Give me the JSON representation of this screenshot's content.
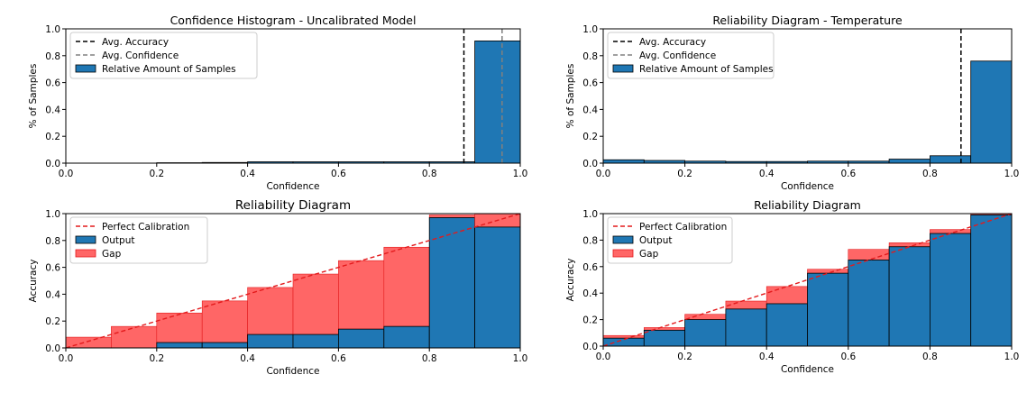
{
  "colors": {
    "output": "#1f77b4",
    "gap": "#ff6666",
    "gap_overconfident": "#a52a3c",
    "perfect": "#e31a1c",
    "avg_accuracy": "#000000",
    "avg_confidence": "#808080",
    "edge": "#000000"
  },
  "chart_data": [
    {
      "type": "bar",
      "kind": "histogram",
      "title": "Confidence Histogram - Uncalibrated Model",
      "xlabel": "Confidence",
      "ylabel": "% of Samples",
      "xlim": [
        0,
        1
      ],
      "ylim": [
        0,
        1
      ],
      "xticks": [
        "0.0",
        "0.2",
        "0.4",
        "0.6",
        "0.8",
        "1.0"
      ],
      "yticks": [
        "0.0",
        "0.2",
        "0.4",
        "0.6",
        "0.8",
        "1.0"
      ],
      "bin_edges": [
        0,
        0.1,
        0.2,
        0.3,
        0.4,
        0.5,
        0.6,
        0.7,
        0.8,
        0.9,
        1.0
      ],
      "values": [
        0,
        0,
        0.003,
        0.005,
        0.01,
        0.01,
        0.01,
        0.01,
        0.01,
        0.91
      ],
      "avg_accuracy": 0.876,
      "avg_confidence": 0.96,
      "legend": {
        "placement": "top-left",
        "entries": [
          "Avg. Accuracy",
          "Avg. Confidence",
          "Relative Amount of Samples"
        ]
      }
    },
    {
      "type": "bar",
      "kind": "histogram",
      "title": "Reliability Diagram - Temperature",
      "xlabel": "Confidence",
      "ylabel": "% of Samples",
      "xlim": [
        0,
        1
      ],
      "ylim": [
        0,
        1
      ],
      "xticks": [
        "0.0",
        "0.2",
        "0.4",
        "0.6",
        "0.8",
        "1.0"
      ],
      "yticks": [
        "0.0",
        "0.2",
        "0.4",
        "0.6",
        "0.8",
        "1.0"
      ],
      "bin_edges": [
        0,
        0.1,
        0.2,
        0.3,
        0.4,
        0.5,
        0.6,
        0.7,
        0.8,
        0.9,
        1.0
      ],
      "values": [
        0.025,
        0.02,
        0.015,
        0.012,
        0.012,
        0.015,
        0.015,
        0.03,
        0.055,
        0.76
      ],
      "avg_accuracy": 0.876,
      "legend": {
        "placement": "top-left",
        "entries": [
          "Avg. Accuracy",
          "Avg. Confidence",
          "Relative Amount of Samples"
        ]
      }
    },
    {
      "type": "bar",
      "kind": "reliability",
      "title": "Reliability Diagram",
      "xlabel": "Confidence",
      "ylabel": "Accuracy",
      "xlim": [
        0,
        1
      ],
      "ylim": [
        0,
        1
      ],
      "xticks": [
        "0.0",
        "0.2",
        "0.4",
        "0.6",
        "0.8",
        "1.0"
      ],
      "yticks": [
        "0.0",
        "0.2",
        "0.4",
        "0.6",
        "0.8",
        "1.0"
      ],
      "bin_edges": [
        0,
        0.1,
        0.2,
        0.3,
        0.4,
        0.5,
        0.6,
        0.7,
        0.8,
        0.9,
        1.0
      ],
      "output": [
        0,
        0,
        0.04,
        0.04,
        0.1,
        0.1,
        0.14,
        0.16,
        0.97,
        0.9
      ],
      "gap_top": [
        0.08,
        0.16,
        0.26,
        0.35,
        0.45,
        0.55,
        0.65,
        0.75,
        0.99,
        1.0
      ],
      "legend": {
        "placement": "top-left",
        "entries": [
          "Perfect Calibration",
          "Output",
          "Gap"
        ]
      }
    },
    {
      "type": "bar",
      "kind": "reliability",
      "title": "Reliability Diagram",
      "xlabel": "Confidence",
      "ylabel": "Accuracy",
      "xlim": [
        0,
        1
      ],
      "ylim": [
        0,
        1
      ],
      "xticks": [
        "0.0",
        "0.2",
        "0.4",
        "0.6",
        "0.8",
        "1.0"
      ],
      "yticks": [
        "0.0",
        "0.2",
        "0.4",
        "0.6",
        "0.8",
        "1.0"
      ],
      "bin_edges": [
        0,
        0.1,
        0.2,
        0.3,
        0.4,
        0.5,
        0.6,
        0.7,
        0.8,
        0.9,
        1.0
      ],
      "output": [
        0.06,
        0.12,
        0.2,
        0.28,
        0.32,
        0.55,
        0.65,
        0.75,
        0.85,
        0.99
      ],
      "gap_top": [
        0.08,
        0.14,
        0.24,
        0.34,
        0.45,
        0.58,
        0.73,
        0.78,
        0.88,
        1.0
      ],
      "legend": {
        "placement": "top-left",
        "entries": [
          "Perfect Calibration",
          "Output",
          "Gap"
        ]
      }
    }
  ]
}
